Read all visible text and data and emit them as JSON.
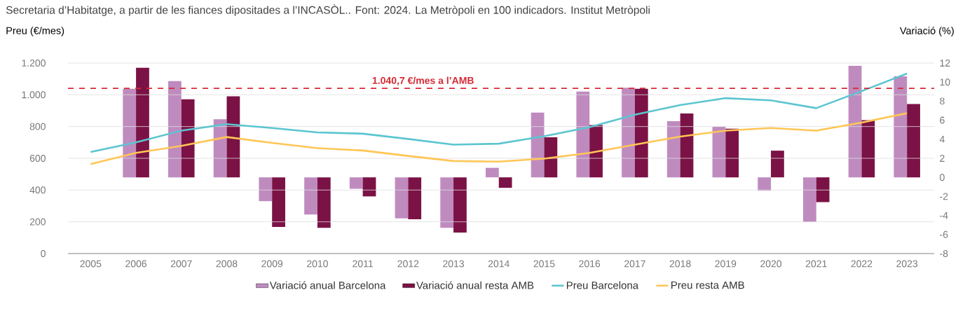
{
  "chart_data": {
    "type": "bar",
    "title": "Secretaria d’Habitatge, a partir de les fiances dipositades a l’INCASÒL.. Font: 2024. La Metròpoli en 100 indicadors. Institut Metròpoli",
    "ylabel": "Preu (€/mes)",
    "y2label": "Variació (%)",
    "categories": [
      "2005",
      "2006",
      "2007",
      "2008",
      "2009",
      "2010",
      "2011",
      "2012",
      "2013",
      "2014",
      "2015",
      "2016",
      "2017",
      "2018",
      "2019",
      "2020",
      "2021",
      "2022",
      "2023"
    ],
    "series": [
      {
        "name": "Variació anual Barcelona",
        "axis": "y2",
        "color": "#bf8bbf",
        "values": [
          null,
          9.3,
          10.1,
          6.1,
          -2.5,
          -3.9,
          -1.2,
          -4.3,
          -5.3,
          1.0,
          6.8,
          9.0,
          9.4,
          5.9,
          5.3,
          -1.4,
          -4.7,
          11.7,
          10.6
        ]
      },
      {
        "name": "Variació anual resta AMB",
        "axis": "y2",
        "color": "#7b1245",
        "values": [
          null,
          11.5,
          8.2,
          8.5,
          -5.2,
          -5.3,
          -2.0,
          -4.4,
          -5.8,
          -1.1,
          4.2,
          5.5,
          9.3,
          6.7,
          5.1,
          2.8,
          -2.6,
          6.0,
          7.7
        ]
      },
      {
        "name": "Preu Barcelona",
        "type": "line",
        "axis": "y",
        "color": "#5bc5d0",
        "values": [
          640,
          700,
          774,
          815,
          791,
          763,
          755,
          722,
          686,
          692,
          739,
          796,
          875,
          935,
          979,
          965,
          916,
          1023,
          1134
        ]
      },
      {
        "name": "Preu resta AMB",
        "type": "line",
        "axis": "y",
        "color": "#ffc655",
        "values": [
          564,
          634,
          678,
          734,
          697,
          664,
          649,
          615,
          583,
          579,
          598,
          634,
          686,
          737,
          774,
          791,
          774,
          825,
          884
        ]
      }
    ],
    "ylim": [
      0,
      1200
    ],
    "yticks": [
      0,
      200,
      400,
      600,
      800,
      {
        "value": 1000,
        "label": "1.000"
      },
      {
        "value": 1200,
        "label": "1.200"
      }
    ],
    "y2lim": [
      -8,
      12
    ],
    "y2ticks": [
      -8,
      -6,
      -4,
      -2,
      0,
      2,
      4,
      6,
      8,
      10,
      12
    ],
    "ref_lines": [
      {
        "axis": "y",
        "value": 1040.7,
        "label": "1.040,7 €/mes a l’AMB",
        "color": "#d62a35",
        "line_style": "dashed"
      }
    ],
    "grid": "y",
    "legend": "bottom"
  }
}
